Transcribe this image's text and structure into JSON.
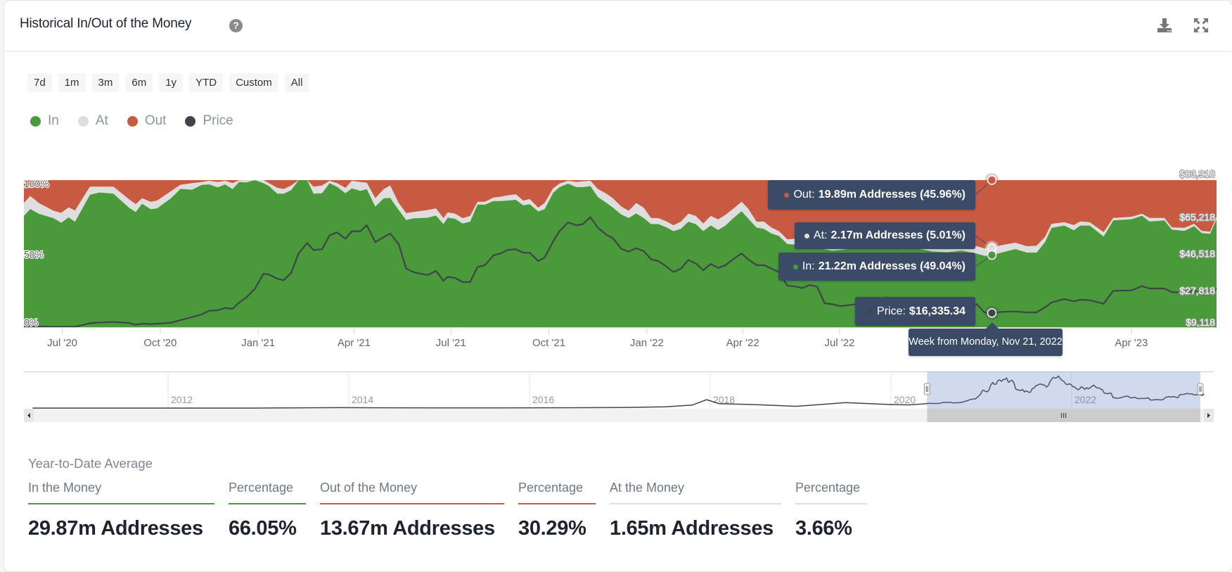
{
  "header": {
    "title": "Historical In/Out of the Money",
    "help_icon": "question-circle-icon",
    "download_icon": "download-icon",
    "fullscreen_icon": "expand-arrows-icon"
  },
  "ranges": [
    "7d",
    "1m",
    "3m",
    "6m",
    "1y",
    "YTD",
    "Custom",
    "All"
  ],
  "legend": [
    {
      "label": "In",
      "color": "#4a9a3b"
    },
    {
      "label": "At",
      "color": "#dedede"
    },
    {
      "label": "Out",
      "color": "#c95a42"
    },
    {
      "label": "Price",
      "color": "#3f434b"
    }
  ],
  "tooltip": {
    "out": {
      "label": "Out:",
      "value": "19.89m Addresses (45.96%)"
    },
    "at": {
      "label": "At:",
      "value": "2.17m Addresses (5.01%)"
    },
    "in": {
      "label": "In:",
      "value": "21.22m Addresses (49.04%)"
    },
    "price": {
      "label": "Price:",
      "value": "$16,335.34"
    },
    "date": "Week from Monday, Nov 21, 2022"
  },
  "chart_data": {
    "type": "area",
    "stacking": "percent",
    "x_range": [
      "2020-05-26",
      "2023-06-20"
    ],
    "left_axis": {
      "ylim": [
        0,
        100
      ],
      "ticks": [
        "0%",
        "50%",
        "100%"
      ]
    },
    "right_axis": {
      "ylim": [
        9118,
        83918
      ],
      "ticks": [
        "$9,118",
        "$27,818",
        "$46,518",
        "$65,218",
        "$83,918"
      ]
    },
    "x_ticks": [
      {
        "date": "2020-07-01",
        "label": "Jul '20"
      },
      {
        "date": "2020-10-01",
        "label": "Oct '20"
      },
      {
        "date": "2021-01-01",
        "label": "Jan '21"
      },
      {
        "date": "2021-04-01",
        "label": "Apr '21"
      },
      {
        "date": "2021-07-01",
        "label": "Jul '21"
      },
      {
        "date": "2021-10-01",
        "label": "Oct '21"
      },
      {
        "date": "2022-01-01",
        "label": "Jan '22"
      },
      {
        "date": "2022-04-01",
        "label": "Apr '22"
      },
      {
        "date": "2022-07-01",
        "label": "Jul '22"
      },
      {
        "date": "2023-04-01",
        "label": "Apr '23"
      }
    ],
    "highlight_date": "2022-11-21",
    "columns": [
      "date",
      "in_pct",
      "at_pct",
      "out_pct",
      "price"
    ],
    "rows": [
      [
        "2020-05-26",
        75.6,
        8.8,
        15.6,
        9475
      ],
      [
        "2020-06-01",
        80.4,
        8.8,
        10.8,
        9400
      ],
      [
        "2020-06-09",
        77.1,
        7.3,
        15.6,
        9400
      ],
      [
        "2020-06-23",
        74.0,
        5.1,
        20.9,
        9350
      ],
      [
        "2020-06-30",
        71.0,
        6.7,
        22.3,
        9350
      ],
      [
        "2020-07-07",
        74.7,
        6.8,
        18.5,
        9350
      ],
      [
        "2020-07-13",
        71.7,
        7.6,
        20.7,
        9350
      ],
      [
        "2020-07-27",
        90.0,
        5.5,
        4.5,
        11140
      ],
      [
        "2020-08-05",
        91.6,
        3.9,
        4.5,
        11500
      ],
      [
        "2020-08-18",
        90.8,
        4.7,
        4.5,
        11740
      ],
      [
        "2020-09-02",
        81.1,
        5.7,
        13.2,
        11260
      ],
      [
        "2020-09-08",
        78.3,
        5.3,
        16.4,
        10310
      ],
      [
        "2020-09-14",
        83.9,
        3.7,
        12.4,
        10900
      ],
      [
        "2020-09-22",
        80.3,
        4.9,
        14.8,
        10660
      ],
      [
        "2020-09-28",
        80.7,
        5.3,
        14.0,
        10900
      ],
      [
        "2020-10-11",
        87.6,
        4.8,
        7.6,
        11380
      ],
      [
        "2020-10-20",
        94.0,
        2.8,
        3.2,
        12690
      ],
      [
        "2020-10-31",
        93.5,
        4.4,
        2.1,
        14240
      ],
      [
        "2020-11-09",
        96.8,
        1.9,
        1.3,
        15670
      ],
      [
        "2020-11-16",
        97.1,
        2.4,
        0.5,
        17450
      ],
      [
        "2020-11-24",
        95.1,
        3.6,
        1.3,
        17700
      ],
      [
        "2020-12-01",
        97.1,
        2.4,
        0.5,
        18880
      ],
      [
        "2020-12-08",
        93.9,
        4.0,
        2.1,
        18410
      ],
      [
        "2020-12-14",
        98.7,
        1.1,
        0.2,
        21620
      ],
      [
        "2020-12-21",
        98.4,
        1.4,
        0.2,
        24240
      ],
      [
        "2020-12-29",
        100,
        0,
        0,
        28770
      ],
      [
        "2021-01-06",
        97.9,
        2.1,
        0,
        36270
      ],
      [
        "2021-01-11",
        96.0,
        2.0,
        2.0,
        35920
      ],
      [
        "2021-01-19",
        90.8,
        3.9,
        5.3,
        33770
      ],
      [
        "2021-01-25",
        90.8,
        3.1,
        6.1,
        32940
      ],
      [
        "2021-02-01",
        93.2,
        3.1,
        3.7,
        36750
      ],
      [
        "2021-02-08",
        100,
        0,
        0,
        46640
      ],
      [
        "2021-02-16",
        100,
        0,
        0,
        51990
      ],
      [
        "2021-02-22",
        90.8,
        4.7,
        4.5,
        48300
      ],
      [
        "2021-03-02",
        91.1,
        5.2,
        3.7,
        48780
      ],
      [
        "2021-03-09",
        97.9,
        1.6,
        0.5,
        55800
      ],
      [
        "2021-03-16",
        95.5,
        2.4,
        2.1,
        57350
      ],
      [
        "2021-03-24",
        91.1,
        3.6,
        5.3,
        54140
      ],
      [
        "2021-03-30",
        94.4,
        5.1,
        0.5,
        57950
      ],
      [
        "2021-04-07",
        92.7,
        6.0,
        1.3,
        57950
      ],
      [
        "2021-04-13",
        93.9,
        4.3,
        1.8,
        60930
      ],
      [
        "2021-04-21",
        82.0,
        5.6,
        12.4,
        52350
      ],
      [
        "2021-04-29",
        87.6,
        6.3,
        6.1,
        54970
      ],
      [
        "2021-05-05",
        87.9,
        8.4,
        3.7,
        56760
      ],
      [
        "2021-05-13",
        79.6,
        4.8,
        15.6,
        51400
      ],
      [
        "2021-05-20",
        72.8,
        4.7,
        22.5,
        38900
      ],
      [
        "2021-05-27",
        74.0,
        4.3,
        21.7,
        37110
      ],
      [
        "2021-06-09",
        74.4,
        5.2,
        20.4,
        35560
      ],
      [
        "2021-06-17",
        75.9,
        4.8,
        19.3,
        37700
      ],
      [
        "2021-06-24",
        70.1,
        4.0,
        25.9,
        32700
      ],
      [
        "2021-06-28",
        74.5,
        3.5,
        22.0,
        34730
      ],
      [
        "2021-07-05",
        73.7,
        3.5,
        22.8,
        34130
      ],
      [
        "2021-07-12",
        70.5,
        3.6,
        25.9,
        32100
      ],
      [
        "2021-07-19",
        71.7,
        3.9,
        24.4,
        32100
      ],
      [
        "2021-07-26",
        83.3,
        1.9,
        14.8,
        39730
      ],
      [
        "2021-08-02",
        83.3,
        1.9,
        14.8,
        40680
      ],
      [
        "2021-08-10",
        85.8,
        2.3,
        11.9,
        45680
      ],
      [
        "2021-08-17",
        85.8,
        2.9,
        11.3,
        46640
      ],
      [
        "2021-08-23",
        86.1,
        3.5,
        10.4,
        48420
      ],
      [
        "2021-08-31",
        86.6,
        3.7,
        9.7,
        48780
      ],
      [
        "2021-09-07",
        82.8,
        3.2,
        14.0,
        46990
      ],
      [
        "2021-09-13",
        83.6,
        3.5,
        12.9,
        46990
      ],
      [
        "2021-09-21",
        78.7,
        2.5,
        18.8,
        42700
      ],
      [
        "2021-09-27",
        80.3,
        4.1,
        15.6,
        44490
      ],
      [
        "2021-10-05",
        91.4,
        3.0,
        5.6,
        52830
      ],
      [
        "2021-10-11",
        95.2,
        2.4,
        2.4,
        57950
      ],
      [
        "2021-10-19",
        97.6,
        1.9,
        0.5,
        62360
      ],
      [
        "2021-10-27",
        95.2,
        3.5,
        1.3,
        60930
      ],
      [
        "2021-11-02",
        95.2,
        4.0,
        0.8,
        61520
      ],
      [
        "2021-11-09",
        96.0,
        3.5,
        0.5,
        65100
      ],
      [
        "2021-11-16",
        88.5,
        5.4,
        6.1,
        59740
      ],
      [
        "2021-11-24",
        84.6,
        6.2,
        9.2,
        56160
      ],
      [
        "2021-11-30",
        81.4,
        6.2,
        12.4,
        54380
      ],
      [
        "2021-12-08",
        76.6,
        5.4,
        18.0,
        49020
      ],
      [
        "2021-12-15",
        74.2,
        4.9,
        20.9,
        47470
      ],
      [
        "2021-12-22",
        77.4,
        7.0,
        15.6,
        49260
      ],
      [
        "2021-12-29",
        74.2,
        7.0,
        18.8,
        47830
      ],
      [
        "2022-01-05",
        70.1,
        4.0,
        25.9,
        43660
      ],
      [
        "2022-01-12",
        70.1,
        4.0,
        25.9,
        42700
      ],
      [
        "2022-01-20",
        67.7,
        4.0,
        28.3,
        39730
      ],
      [
        "2022-01-26",
        65.3,
        4.0,
        30.7,
        37110
      ],
      [
        "2022-02-02",
        66.9,
        4.8,
        28.3,
        38900
      ],
      [
        "2022-02-09",
        71.7,
        5.5,
        22.8,
        43300
      ],
      [
        "2022-02-16",
        70.1,
        5.5,
        24.4,
        41510
      ],
      [
        "2022-02-23",
        65.3,
        5.1,
        29.6,
        38060
      ],
      [
        "2022-03-02",
        69.2,
        6.4,
        24.4,
        41280
      ],
      [
        "2022-03-09",
        66.1,
        7.1,
        26.8,
        39250
      ],
      [
        "2022-03-16",
        69.2,
        7.2,
        23.6,
        40680
      ],
      [
        "2022-03-23",
        74.0,
        6.4,
        19.6,
        43660
      ],
      [
        "2022-03-31",
        78.8,
        6.4,
        14.8,
        46640
      ],
      [
        "2022-04-06",
        74.0,
        6.7,
        19.3,
        43660
      ],
      [
        "2022-04-14",
        67.7,
        4.0,
        28.3,
        40680
      ],
      [
        "2022-04-21",
        66.9,
        4.8,
        28.3,
        40680
      ],
      [
        "2022-04-28",
        63.7,
        4.0,
        32.3,
        38900
      ],
      [
        "2022-05-05",
        62.1,
        3.2,
        34.7,
        37110
      ],
      [
        "2022-05-13",
        56.5,
        3.2,
        40.3,
        30200
      ],
      [
        "2022-05-19",
        56.2,
        3.8,
        40.0,
        29960
      ],
      [
        "2022-05-27",
        55.5,
        4.0,
        40.5,
        29010
      ],
      [
        "2022-06-03",
        55.0,
        4.0,
        41.0,
        30550
      ],
      [
        "2022-06-10",
        54.5,
        4.0,
        41.5,
        29720
      ],
      [
        "2022-06-17",
        53.0,
        5.0,
        42.0,
        21270
      ],
      [
        "2022-06-24",
        52.0,
        5.0,
        43.0,
        20790
      ],
      [
        "2022-07-02",
        52.5,
        4.5,
        43.0,
        19840
      ],
      [
        "2022-07-12",
        53.5,
        4.5,
        42.0,
        20450
      ],
      [
        "2022-07-19",
        54.5,
        4.5,
        41.0,
        21050
      ],
      [
        "2022-08-01",
        56.0,
        4.5,
        39.5,
        23300
      ],
      [
        "2022-08-15",
        57.0,
        4.5,
        38.5,
        24300
      ],
      [
        "2022-08-29",
        53.0,
        5.0,
        42.0,
        20300
      ],
      [
        "2022-09-12",
        53.5,
        5.0,
        41.5,
        21800
      ],
      [
        "2022-09-26",
        51.5,
        5.0,
        43.5,
        19100
      ],
      [
        "2022-10-10",
        51.0,
        5.0,
        44.0,
        19400
      ],
      [
        "2022-10-24",
        52.0,
        5.0,
        43.0,
        19600
      ],
      [
        "2022-11-07",
        50.0,
        5.0,
        45.0,
        20800
      ],
      [
        "2022-11-14",
        48.5,
        5.0,
        46.5,
        16600
      ],
      [
        "2022-11-21",
        49.04,
        5.01,
        45.96,
        16335.34
      ],
      [
        "2022-11-30",
        50.7,
        5.0,
        44.3,
        16870
      ],
      [
        "2022-12-13",
        53.1,
        4.3,
        42.6,
        17110
      ],
      [
        "2022-12-24",
        50.7,
        4.3,
        45.0,
        16630
      ],
      [
        "2023-01-02",
        50.7,
        4.6,
        44.7,
        16630
      ],
      [
        "2023-01-10",
        57.9,
        3.5,
        38.6,
        19260
      ],
      [
        "2023-01-16",
        67.5,
        2.7,
        29.8,
        21650
      ],
      [
        "2023-01-28",
        69.1,
        2.2,
        28.7,
        23440
      ],
      [
        "2023-02-06",
        65.9,
        3.5,
        30.6,
        22240
      ],
      [
        "2023-02-12",
        69.1,
        2.7,
        28.2,
        23080
      ],
      [
        "2023-02-21",
        69.1,
        2.2,
        28.7,
        22840
      ],
      [
        "2023-03-06",
        61.6,
        3.0,
        35.4,
        21050
      ],
      [
        "2023-03-15",
        72.6,
        1.6,
        25.8,
        27610
      ],
      [
        "2023-04-01",
        73.4,
        1.6,
        25.0,
        27850
      ],
      [
        "2023-04-11",
        75.8,
        1.3,
        22.9,
        29990
      ],
      [
        "2023-04-18",
        71.8,
        2.4,
        25.8,
        28800
      ],
      [
        "2023-05-02",
        72.6,
        1.6,
        25.8,
        28800
      ],
      [
        "2023-05-09",
        66.3,
        1.5,
        32.2,
        27010
      ],
      [
        "2023-05-21",
        65.5,
        2.0,
        32.5,
        26650
      ],
      [
        "2023-05-30",
        68.7,
        1.5,
        29.8,
        27610
      ],
      [
        "2023-06-06",
        64.0,
        1.4,
        34.6,
        26420
      ],
      [
        "2023-06-14",
        63.5,
        1.4,
        35.1,
        25820
      ],
      [
        "2023-06-20",
        73.4,
        1.6,
        25.0,
        28800
      ]
    ],
    "navigator": {
      "year_labels": [
        "2012",
        "2014",
        "2016",
        "2018",
        "2020",
        "2022"
      ],
      "selected_range": [
        "2020-05-26",
        "2023-06-20"
      ],
      "price_history": [
        [
          2010.5,
          0
        ],
        [
          2011.5,
          10
        ],
        [
          2013.0,
          20
        ],
        [
          2013.9,
          900
        ],
        [
          2014.5,
          600
        ],
        [
          2015.5,
          250
        ],
        [
          2016.5,
          650
        ],
        [
          2017.0,
          1000
        ],
        [
          2017.5,
          2500
        ],
        [
          2017.8,
          6000
        ],
        [
          2017.96,
          17000
        ],
        [
          2018.1,
          9000
        ],
        [
          2018.5,
          7000
        ],
        [
          2018.95,
          3600
        ],
        [
          2019.5,
          11000
        ],
        [
          2019.7,
          9500
        ],
        [
          2020.0,
          7200
        ],
        [
          2020.2,
          6500
        ],
        [
          2020.4,
          9000
        ]
      ]
    }
  },
  "stats": {
    "heading": "Year-to-Date Average",
    "columns": [
      {
        "label": "In the Money",
        "value": "29.87m Addresses",
        "color": "#4a9a3b"
      },
      {
        "label": "Percentage",
        "value": "66.05%",
        "color": "#4a9a3b"
      },
      {
        "label": "Out of the Money",
        "value": "13.67m Addresses",
        "color": "#c95a42"
      },
      {
        "label": "Percentage",
        "value": "30.29%",
        "color": "#c95a42"
      },
      {
        "label": "At the Money",
        "value": "1.65m Addresses",
        "color": "#dedede"
      },
      {
        "label": "Percentage",
        "value": "3.66%",
        "color": "#dedede"
      }
    ]
  }
}
